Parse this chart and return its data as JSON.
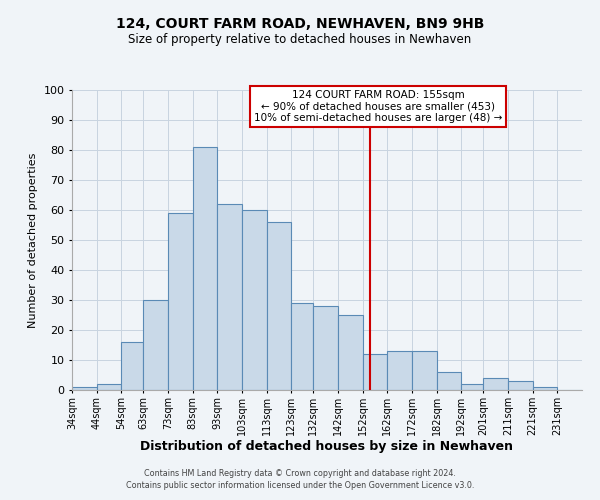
{
  "title": "124, COURT FARM ROAD, NEWHAVEN, BN9 9HB",
  "subtitle": "Size of property relative to detached houses in Newhaven",
  "xlabel": "Distribution of detached houses by size in Newhaven",
  "ylabel": "Number of detached properties",
  "bin_labels": [
    "34sqm",
    "44sqm",
    "54sqm",
    "63sqm",
    "73sqm",
    "83sqm",
    "93sqm",
    "103sqm",
    "113sqm",
    "123sqm",
    "132sqm",
    "142sqm",
    "152sqm",
    "162sqm",
    "172sqm",
    "182sqm",
    "192sqm",
    "201sqm",
    "211sqm",
    "221sqm",
    "231sqm"
  ],
  "bar_heights": [
    1,
    2,
    16,
    30,
    59,
    81,
    62,
    60,
    56,
    29,
    28,
    25,
    12,
    13,
    13,
    6,
    2,
    4,
    3,
    1,
    0
  ],
  "bar_color": "#c9d9e8",
  "bar_edge_color": "#5a8ab5",
  "vline_x": 155,
  "vline_color": "#cc0000",
  "ylim": [
    0,
    100
  ],
  "annotation_title": "124 COURT FARM ROAD: 155sqm",
  "annotation_line1": "← 90% of detached houses are smaller (453)",
  "annotation_line2": "10% of semi-detached houses are larger (48) →",
  "annotation_box_color": "#cc0000",
  "footnote1": "Contains HM Land Registry data © Crown copyright and database right 2024.",
  "footnote2": "Contains public sector information licensed under the Open Government Licence v3.0.",
  "background_color": "#f0f4f8",
  "grid_color": "#c8d4e0",
  "bin_starts": [
    34,
    44,
    54,
    63,
    73,
    83,
    93,
    103,
    113,
    123,
    132,
    142,
    152,
    162,
    172,
    182,
    192,
    201,
    211,
    221,
    231
  ]
}
